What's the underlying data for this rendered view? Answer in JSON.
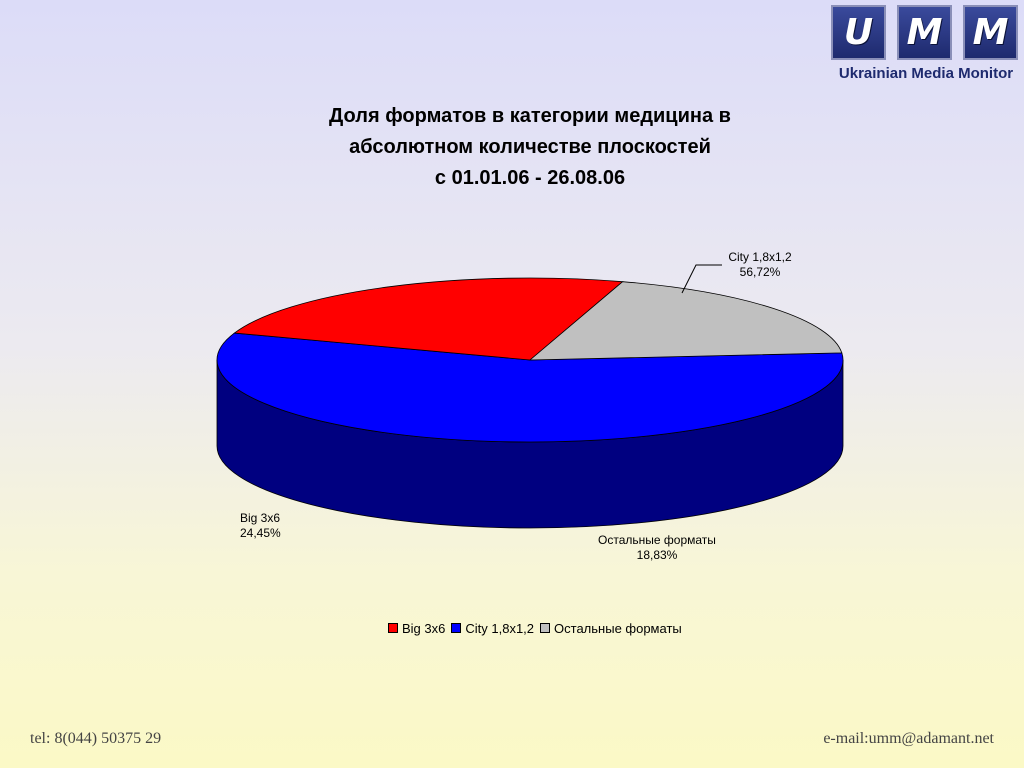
{
  "logo": {
    "letters": [
      "U",
      "M",
      "M"
    ],
    "caption": "Ukrainian Media Monitor"
  },
  "chart_data": {
    "type": "pie",
    "title_lines": [
      "Доля форматов в категории медицина  в",
      "абсолютном количестве плоскостей",
      "с 01.01.06 - 26.08.06"
    ],
    "series": [
      {
        "name": "Big 3x6",
        "value": 24.45,
        "label": "24,45%",
        "color": "#ff0000",
        "side_color": "#800000"
      },
      {
        "name": "City 1,8x1,2",
        "value": 56.72,
        "label": "56,72%",
        "color": "#0000ff",
        "side_color": "#000080"
      },
      {
        "name": "Остальные форматы",
        "value": 18.83,
        "label": "18,83%",
        "color": "#c0c0c0",
        "side_color": "#5f5f5f"
      }
    ],
    "legend_position": "bottom"
  },
  "footer": {
    "phone": "tel: 8(044) 50375 29",
    "email": "e-mail:umm@adamant.net"
  }
}
